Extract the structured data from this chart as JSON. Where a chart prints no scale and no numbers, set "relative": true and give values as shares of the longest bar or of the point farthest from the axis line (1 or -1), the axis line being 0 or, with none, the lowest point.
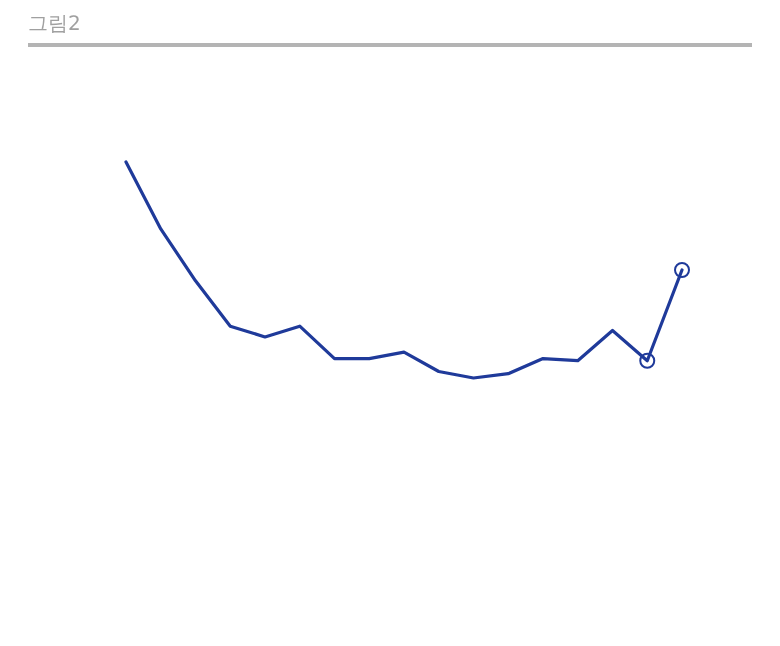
{
  "chart_data": {
    "type": "line",
    "title": "그림2",
    "relative": true,
    "categories": [
      null,
      null,
      null,
      null,
      null,
      null,
      null,
      null,
      null,
      null,
      null,
      null,
      null,
      null,
      null,
      null,
      null
    ],
    "series": [
      {
        "color": "#1f3a9a",
        "values": [
          1.0,
          0.69,
          0.45,
          0.24,
          0.19,
          0.24,
          0.09,
          0.09,
          0.12,
          0.03,
          0,
          0.02,
          0.09,
          0.08,
          0.22,
          0.08,
          0.5
        ]
      }
    ]
  }
}
